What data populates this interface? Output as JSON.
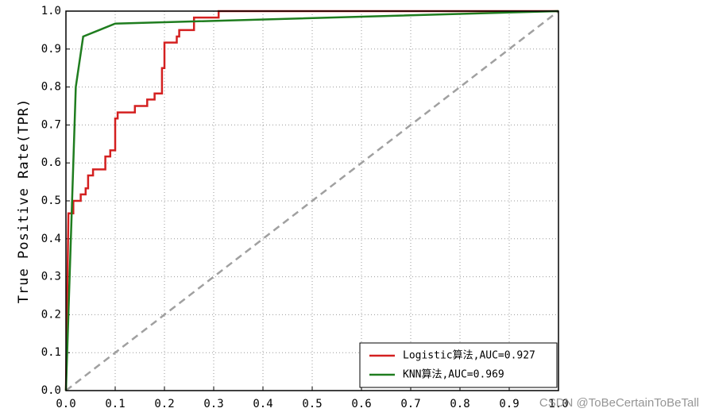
{
  "chart_data": {
    "type": "line",
    "ylabel": "True Positive Rate(TPR)",
    "xlim": [
      0,
      1
    ],
    "ylim": [
      0,
      1
    ],
    "xticks": [
      {
        "value": 0,
        "label": "0.0"
      },
      0.1,
      0.2,
      0.3,
      0.4,
      0.5,
      0.6,
      0.7,
      0.8,
      0.9,
      {
        "value": 1,
        "label": "1.0"
      }
    ],
    "yticks": [
      {
        "value": 0,
        "label": "0.0"
      },
      0.1,
      0.2,
      0.3,
      0.4,
      0.5,
      0.6,
      0.7,
      0.8,
      0.9,
      {
        "value": 1,
        "label": "1.0"
      }
    ],
    "grid": true,
    "legend": "lower right",
    "series": [
      {
        "name": "Logistic算法,AUC=0.927",
        "color": "#d42020",
        "x": [
          0,
          0.005,
          0.015,
          0.015,
          0.03,
          0.03,
          0.04,
          0.04,
          0.045,
          0.045,
          0.055,
          0.055,
          0.08,
          0.08,
          0.09,
          0.09,
          0.1,
          0.1,
          0.105,
          0.105,
          0.14,
          0.14,
          0.165,
          0.165,
          0.18,
          0.18,
          0.195,
          0.195,
          0.2,
          0.2,
          0.225,
          0.225,
          0.23,
          0.23,
          0.26,
          0.26,
          0.31,
          0.31,
          1.0
        ],
        "values": [
          0,
          0.467,
          0.467,
          0.5,
          0.5,
          0.517,
          0.517,
          0.533,
          0.533,
          0.567,
          0.567,
          0.583,
          0.583,
          0.617,
          0.617,
          0.633,
          0.633,
          0.717,
          0.717,
          0.733,
          0.733,
          0.75,
          0.75,
          0.767,
          0.767,
          0.783,
          0.783,
          0.85,
          0.85,
          0.917,
          0.917,
          0.933,
          0.933,
          0.95,
          0.95,
          0.983,
          0.983,
          1.0,
          1.0
        ]
      },
      {
        "name": "KNN算法,AUC=0.969",
        "color": "#1f7d1f",
        "x": [
          0,
          0.02,
          0.035,
          0.1,
          1.0
        ],
        "values": [
          0,
          0.8,
          0.933,
          0.967,
          1.0
        ]
      }
    ],
    "watermark": "CSDN @ToBeCertainToBeTall"
  }
}
